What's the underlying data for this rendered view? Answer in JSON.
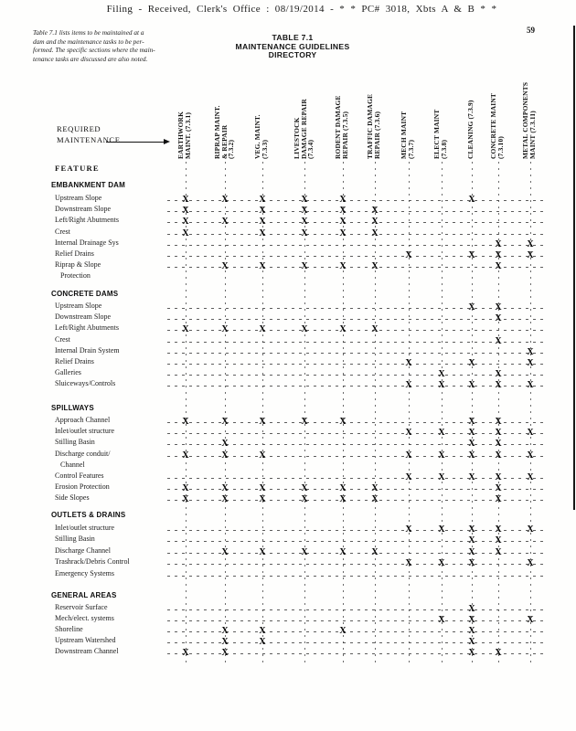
{
  "header": {
    "filing_line": "Filing - Received,   Clerk's  Office   :   08/19/2014     - * * PC#  3018,  Xbts  A & B * *",
    "note_lines": [
      "Table 7.1 lists items to be maintained at a",
      "dam and the maintenance tasks to be per-",
      "formed. The specific sections where the main-",
      "tenance tasks are discussed are also noted."
    ],
    "title_lines": [
      "TABLE 7.1",
      "MAINTENANCE GUIDELINES",
      "DIRECTORY"
    ],
    "page_number": "59"
  },
  "table": {
    "required_maintenance_line1": "REQUIRED",
    "required_maintenance_line2": "MAINTENANCE",
    "feature_label": "FEATURE",
    "mark_glyph": "X",
    "columns": [
      {
        "label": "EARTHWORK\nMAINT. (7.3.1)"
      },
      {
        "label": "RIPRAP MAINT.\n& REPAIR\n(7.3.2)"
      },
      {
        "label": "VEG. MAINT.\n(7.3.3)"
      },
      {
        "label": "LIVESTOCK\nDAMAGE REPAIR\n(7.3.4)"
      },
      {
        "label": "RODENT DAMAGE\nREPAIR (7.3.5)"
      },
      {
        "label": "TRAFFIC DAMAGE\nREPAIR (7.3.6)"
      },
      {
        "label": "MECH MAINT\n(7.3.7)"
      },
      {
        "label": "ELECT MAINT\n(7.3.8)"
      },
      {
        "label": "CLEANING (7.3.9)"
      },
      {
        "label": "CONCRETE MAINT\n(7.3.10)"
      },
      {
        "label": "METAL COMPONENTS\nMAINT (7.3.11)"
      }
    ],
    "sections": [
      {
        "title": "EMBANKMENT DAM",
        "rows": [
          {
            "label": "Upstream Slope",
            "marks": [
              1,
              2,
              3,
              4,
              5,
              9
            ]
          },
          {
            "label": "Downstream Slope",
            "marks": [
              1,
              3,
              4,
              5,
              6
            ]
          },
          {
            "label": "Left/Right Abutments",
            "marks": [
              1,
              2,
              3,
              4,
              5,
              6
            ]
          },
          {
            "label": "Crest",
            "marks": [
              1,
              3,
              4,
              5,
              6
            ]
          },
          {
            "label": "Internal Drainage Sys",
            "marks": [
              10,
              11
            ]
          },
          {
            "label": "Relief Drains",
            "marks": [
              7,
              9,
              10,
              11
            ]
          },
          {
            "label": "Riprap & Slope",
            "label2": "Protection",
            "marks": [
              2,
              3,
              4,
              5,
              6,
              10
            ]
          }
        ]
      },
      {
        "title": "CONCRETE DAMS",
        "rows": [
          {
            "label": "Upstream Slope",
            "marks": [
              9,
              10
            ]
          },
          {
            "label": "Downstream Slope",
            "marks": [
              10
            ]
          },
          {
            "label": "Left/Right Abutments",
            "marks": [
              1,
              2,
              3,
              4,
              5,
              6
            ]
          },
          {
            "label": "Crest",
            "marks": [
              10
            ]
          },
          {
            "label": "Internal Drain System",
            "marks": [
              11
            ]
          },
          {
            "label": "Relief Drains",
            "marks": [
              7,
              9,
              11
            ]
          },
          {
            "label": "Galleries",
            "marks": [
              8,
              10
            ]
          },
          {
            "label": "Sluiceways/Controls",
            "marks": [
              7,
              8,
              9,
              10,
              11
            ]
          }
        ]
      },
      {
        "title": "SPILLWAYS",
        "rows": [
          {
            "label": "Approach Channel",
            "marks": [
              1,
              2,
              3,
              4,
              5,
              9,
              10
            ]
          },
          {
            "label": "Inlet/outlet structure",
            "marks": [
              7,
              8,
              9,
              10,
              11
            ]
          },
          {
            "label": "Stilling Basin",
            "marks": [
              2,
              9,
              10
            ]
          },
          {
            "label": "Discharge conduit/",
            "label2": "Channel",
            "marks": [
              1,
              2,
              3,
              7,
              8,
              9,
              10,
              11
            ]
          },
          {
            "label": "Control Features",
            "marks": [
              7,
              8,
              9,
              10,
              11
            ]
          },
          {
            "label": "Erosion Protection",
            "marks": [
              1,
              2,
              3,
              4,
              5,
              6,
              10
            ]
          },
          {
            "label": "Side Slopes",
            "marks": [
              1,
              2,
              3,
              4,
              5,
              6,
              10
            ]
          }
        ]
      },
      {
        "title": "OUTLETS & DRAINS",
        "rows": [
          {
            "label": "Inlet/outlet structure",
            "marks": [
              7,
              8,
              9,
              10,
              11
            ]
          },
          {
            "label": "Stilling Basin",
            "marks": [
              9,
              10
            ]
          },
          {
            "label": "Discharge Channel",
            "marks": [
              2,
              3,
              4,
              5,
              6,
              9,
              10
            ]
          },
          {
            "label": "Trashrack/Debris Control",
            "marks": [
              7,
              8,
              9,
              11
            ]
          },
          {
            "label": "Emergency Systems",
            "marks": []
          }
        ]
      },
      {
        "title": "GENERAL AREAS",
        "rows": [
          {
            "label": "Reservoir Surface",
            "marks": [
              9
            ]
          },
          {
            "label": "Mech/elect. systems",
            "marks": [
              8,
              9,
              11
            ]
          },
          {
            "label": "Shoreline",
            "marks": [
              2,
              3,
              5,
              9
            ]
          },
          {
            "label": "Upstream Watershed",
            "marks": [
              2,
              3,
              9
            ]
          },
          {
            "label": "Downstream Channel",
            "marks": [
              1,
              2,
              9,
              10
            ]
          }
        ]
      }
    ]
  }
}
